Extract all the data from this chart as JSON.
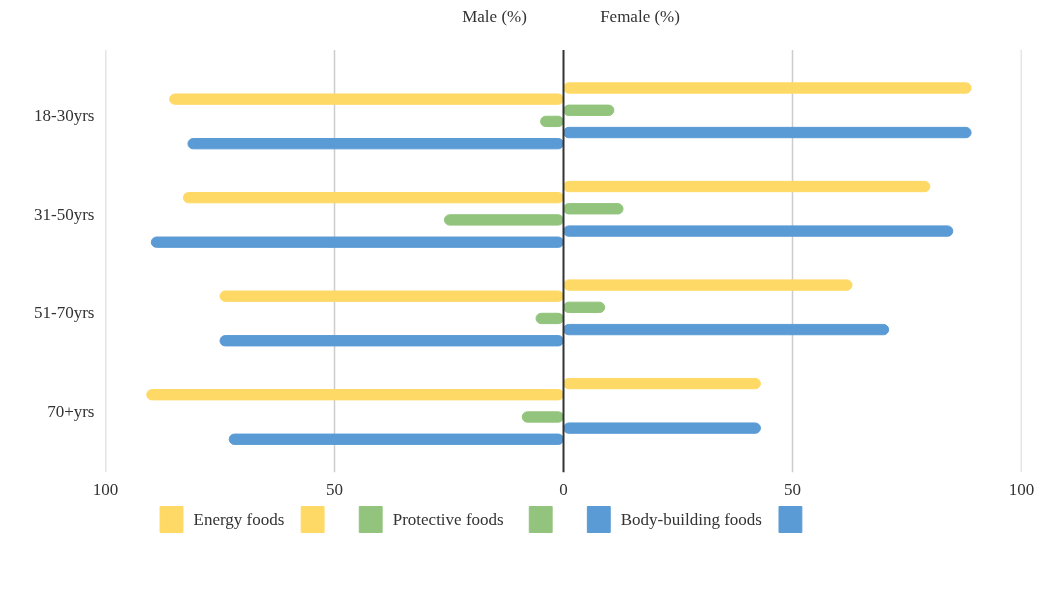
{
  "chart_data": {
    "type": "bar",
    "orientation": "horizontal",
    "categories": [
      "18-30yrs",
      "31-50yrs",
      "51-70yrs",
      "70+yrs"
    ],
    "series": [
      {
        "name": "Energy foods",
        "color": "#ffd966",
        "values": [
          -86,
          -83,
          -75,
          -91
        ]
      },
      {
        "color": "#ffd966",
        "values": [
          89,
          80,
          63,
          43
        ]
      },
      {
        "name": "Protective foods",
        "color": "#93c47d",
        "values": [
          -5,
          -26,
          -6,
          -9
        ]
      },
      {
        "color": "#93c47d",
        "values": [
          11,
          13,
          9,
          0
        ]
      },
      {
        "name": "Body-building foods",
        "color": "#5b9bd5",
        "values": [
          -82,
          -90,
          -75,
          -73
        ]
      },
      {
        "color": "#5b9bd5",
        "values": [
          89,
          85,
          71,
          43
        ]
      }
    ],
    "xlim": [
      -100,
      100
    ],
    "xticks": [
      {
        "value": -100,
        "label": "100"
      },
      {
        "value": -50,
        "label": "50"
      },
      0,
      50,
      100
    ],
    "annotations": [
      "Male (%)",
      "Female (%)"
    ],
    "grid": "x",
    "legend": "bottom"
  }
}
